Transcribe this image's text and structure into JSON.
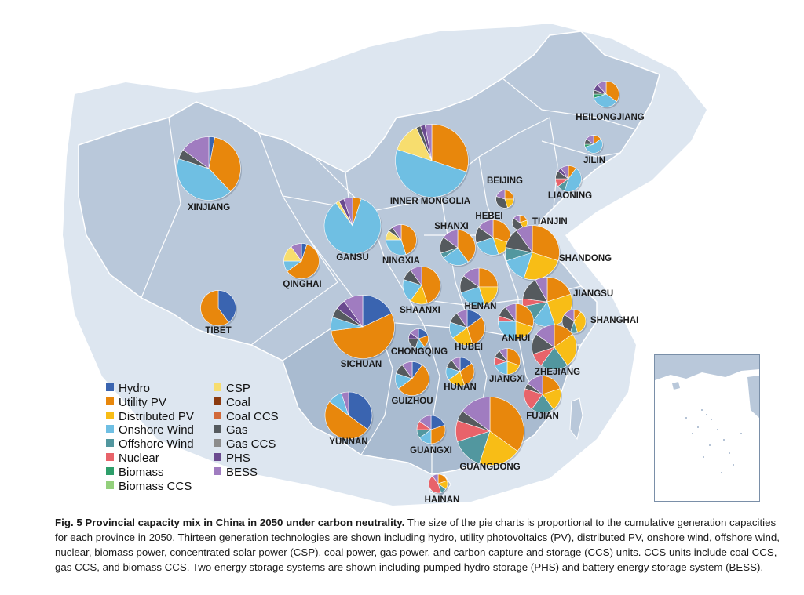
{
  "figure": {
    "caption_title": "Fig. 5 Provincial capacity mix in China in 2050 under carbon neutrality.",
    "caption_body": "The size of the pie charts is proportional to the cumulative generation capacities for each province in 2050. Thirteen generation technologies are shown including hydro, utility photovoltaics (PV), distributed PV, onshore wind, offshore wind, nuclear, biomass power, concentrated solar power (CSP), coal power, gas power, and carbon capture and storage (CCS) units. CCS units include coal CCS, gas CCS, and biomass CCS. Two energy storage systems are shown including pumped hydro storage (PHS) and battery energy storage system (BESS)."
  },
  "colors": {
    "map_land": "#b9c8da",
    "map_land_south": "#a9bbd0",
    "map_border": "#ffffff",
    "map_neighbor": "#dde6f0"
  },
  "legend": [
    {
      "key": "hydro",
      "label": "Hydro",
      "color": "#3a64b0"
    },
    {
      "key": "utility_pv",
      "label": "Utility PV",
      "color": "#e8870c"
    },
    {
      "key": "distributed_pv",
      "label": "Distributed PV",
      "color": "#f8bd16"
    },
    {
      "key": "onshore_wind",
      "label": "Onshore Wind",
      "color": "#6fbfe3"
    },
    {
      "key": "offshore_wind",
      "label": "Offshore Wind",
      "color": "#52979f"
    },
    {
      "key": "nuclear",
      "label": "Nuclear",
      "color": "#e8636a"
    },
    {
      "key": "biomass",
      "label": "Biomass",
      "color": "#2e9e6a"
    },
    {
      "key": "biomass_ccs",
      "label": "Biomass CCS",
      "color": "#93d07c"
    },
    {
      "key": "csp",
      "label": "CSP",
      "color": "#f7dd6e"
    },
    {
      "key": "coal",
      "label": "Coal",
      "color": "#8b3a0f"
    },
    {
      "key": "coal_ccs",
      "label": "Coal CCS",
      "color": "#d2693a"
    },
    {
      "key": "gas",
      "label": "Gas",
      "color": "#555a5e"
    },
    {
      "key": "gas_ccs",
      "label": "Gas CCS",
      "color": "#8c8c8c"
    },
    {
      "key": "phs",
      "label": "PHS",
      "color": "#6a4a8f"
    },
    {
      "key": "bess",
      "label": "BESS",
      "color": "#a07cc0"
    }
  ],
  "provinces": [
    {
      "name": "HEILONGJIANG",
      "size": 0.55,
      "mix": {
        "utility_pv": 35,
        "onshore_wind": 35,
        "biomass": 5,
        "gas": 5,
        "phs": 8,
        "bess": 12
      }
    },
    {
      "name": "JILIN",
      "size": 0.38,
      "mix": {
        "utility_pv": 15,
        "onshore_wind": 55,
        "biomass": 5,
        "gas": 10,
        "bess": 15
      }
    },
    {
      "name": "LIAONING",
      "size": 0.55,
      "mix": {
        "utility_pv": 10,
        "onshore_wind": 45,
        "offshore_wind": 10,
        "nuclear": 10,
        "gas": 10,
        "phs": 5,
        "bess": 10
      }
    },
    {
      "name": "BEIJING",
      "size": 0.38,
      "mix": {
        "utility_pv": 25,
        "distributed_pv": 20,
        "gas": 35,
        "bess": 20
      }
    },
    {
      "name": "TIANJIN",
      "size": 0.32,
      "mix": {
        "distributed_pv": 20,
        "utility_pv": 20,
        "gas": 45,
        "bess": 15
      }
    },
    {
      "name": "HEBEI",
      "size": 0.75,
      "mix": {
        "utility_pv": 30,
        "distributed_pv": 15,
        "onshore_wind": 25,
        "gas": 15,
        "bess": 15
      }
    },
    {
      "name": "INNER MONGOLIA",
      "size": 1.55,
      "mix": {
        "utility_pv": 30,
        "onshore_wind": 50,
        "csp": 13,
        "gas": 2,
        "phs": 2,
        "bess": 3
      }
    },
    {
      "name": "XINJIANG",
      "size": 1.35,
      "mix": {
        "hydro": 3,
        "utility_pv": 35,
        "onshore_wind": 42,
        "gas": 5,
        "bess": 15
      }
    },
    {
      "name": "GANSU",
      "size": 1.2,
      "mix": {
        "utility_pv": 5,
        "onshore_wind": 85,
        "csp": 2,
        "phs": 3,
        "bess": 5
      }
    },
    {
      "name": "QINGHAI",
      "size": 0.75,
      "mix": {
        "hydro": 5,
        "utility_pv": 60,
        "onshore_wind": 10,
        "csp": 15,
        "bess": 10
      }
    },
    {
      "name": "NINGXIA",
      "size": 0.65,
      "mix": {
        "utility_pv": 45,
        "onshore_wind": 30,
        "csp": 10,
        "gas": 5,
        "bess": 10
      }
    },
    {
      "name": "SHANXI",
      "size": 0.75,
      "mix": {
        "utility_pv": 40,
        "onshore_wind": 25,
        "offshore_wind": 5,
        "gas": 15,
        "bess": 15
      }
    },
    {
      "name": "SHANDONG",
      "size": 1.15,
      "mix": {
        "utility_pv": 30,
        "distributed_pv": 25,
        "onshore_wind": 15,
        "offshore_wind": 8,
        "gas": 12,
        "bess": 10
      }
    },
    {
      "name": "SHAANXI",
      "size": 0.8,
      "mix": {
        "utility_pv": 45,
        "distributed_pv": 15,
        "onshore_wind": 20,
        "gas": 10,
        "bess": 10
      }
    },
    {
      "name": "HENAN",
      "size": 0.8,
      "mix": {
        "utility_pv": 25,
        "distributed_pv": 20,
        "onshore_wind": 25,
        "gas": 15,
        "bess": 15
      }
    },
    {
      "name": "JIANGSU",
      "size": 1.05,
      "mix": {
        "utility_pv": 20,
        "distributed_pv": 25,
        "onshore_wind": 15,
        "offshore_wind": 12,
        "nuclear": 5,
        "gas": 15,
        "bess": 8
      }
    },
    {
      "name": "SHANGHAI",
      "size": 0.5,
      "mix": {
        "distributed_pv": 35,
        "utility_pv": 10,
        "offshore_wind": 10,
        "gas": 30,
        "bess": 15
      }
    },
    {
      "name": "TIBET",
      "size": 0.75,
      "mix": {
        "hydro": 40,
        "utility_pv": 60
      }
    },
    {
      "name": "SICHUAN",
      "size": 1.35,
      "mix": {
        "hydro": 18,
        "utility_pv": 55,
        "onshore_wind": 7,
        "gas": 5,
        "phs": 5,
        "bess": 10
      }
    },
    {
      "name": "CHONGQING",
      "size": 0.42,
      "mix": {
        "hydro": 20,
        "utility_pv": 20,
        "onshore_wind": 15,
        "gas": 20,
        "phs": 10,
        "bess": 15
      }
    },
    {
      "name": "HUBEI",
      "size": 0.75,
      "mix": {
        "hydro": 15,
        "utility_pv": 30,
        "distributed_pv": 20,
        "onshore_wind": 15,
        "gas": 10,
        "bess": 10
      }
    },
    {
      "name": "ANHUI",
      "size": 0.75,
      "mix": {
        "utility_pv": 30,
        "distributed_pv": 20,
        "onshore_wind": 25,
        "nuclear": 5,
        "gas": 10,
        "bess": 10
      }
    },
    {
      "name": "ZHEJIANG",
      "size": 0.95,
      "mix": {
        "distributed_pv": 25,
        "utility_pv": 15,
        "offshore_wind": 20,
        "nuclear": 10,
        "gas": 15,
        "bess": 15
      }
    },
    {
      "name": "GUIZHOU",
      "size": 0.72,
      "mix": {
        "hydro": 10,
        "utility_pv": 55,
        "onshore_wind": 15,
        "gas": 10,
        "bess": 10
      }
    },
    {
      "name": "HUNAN",
      "size": 0.6,
      "mix": {
        "hydro": 15,
        "utility_pv": 30,
        "distributed_pv": 20,
        "onshore_wind": 15,
        "gas": 10,
        "bess": 10
      }
    },
    {
      "name": "JIANGXI",
      "size": 0.55,
      "mix": {
        "utility_pv": 30,
        "distributed_pv": 20,
        "onshore_wind": 20,
        "nuclear": 10,
        "gas": 10,
        "bess": 10
      }
    },
    {
      "name": "YUNNAN",
      "size": 1.0,
      "mix": {
        "hydro": 35,
        "utility_pv": 50,
        "onshore_wind": 10,
        "bess": 5
      }
    },
    {
      "name": "GUANGXI",
      "size": 0.6,
      "mix": {
        "hydro": 20,
        "utility_pv": 30,
        "onshore_wind": 15,
        "nuclear": 10,
        "offshore_wind": 10,
        "bess": 15
      }
    },
    {
      "name": "GUANGDONG",
      "size": 1.45,
      "mix": {
        "utility_pv": 35,
        "distributed_pv": 20,
        "offshore_wind": 15,
        "nuclear": 10,
        "gas": 5,
        "bess": 15
      }
    },
    {
      "name": "FUJIAN",
      "size": 0.78,
      "mix": {
        "utility_pv": 20,
        "distributed_pv": 20,
        "offshore_wind": 20,
        "nuclear": 20,
        "gas": 5,
        "bess": 15
      }
    },
    {
      "name": "HAINAN",
      "size": 0.4,
      "mix": {
        "utility_pv": 20,
        "distributed_pv": 15,
        "nuclear": 45,
        "offshore_wind": 10,
        "bess": 10
      }
    }
  ]
}
